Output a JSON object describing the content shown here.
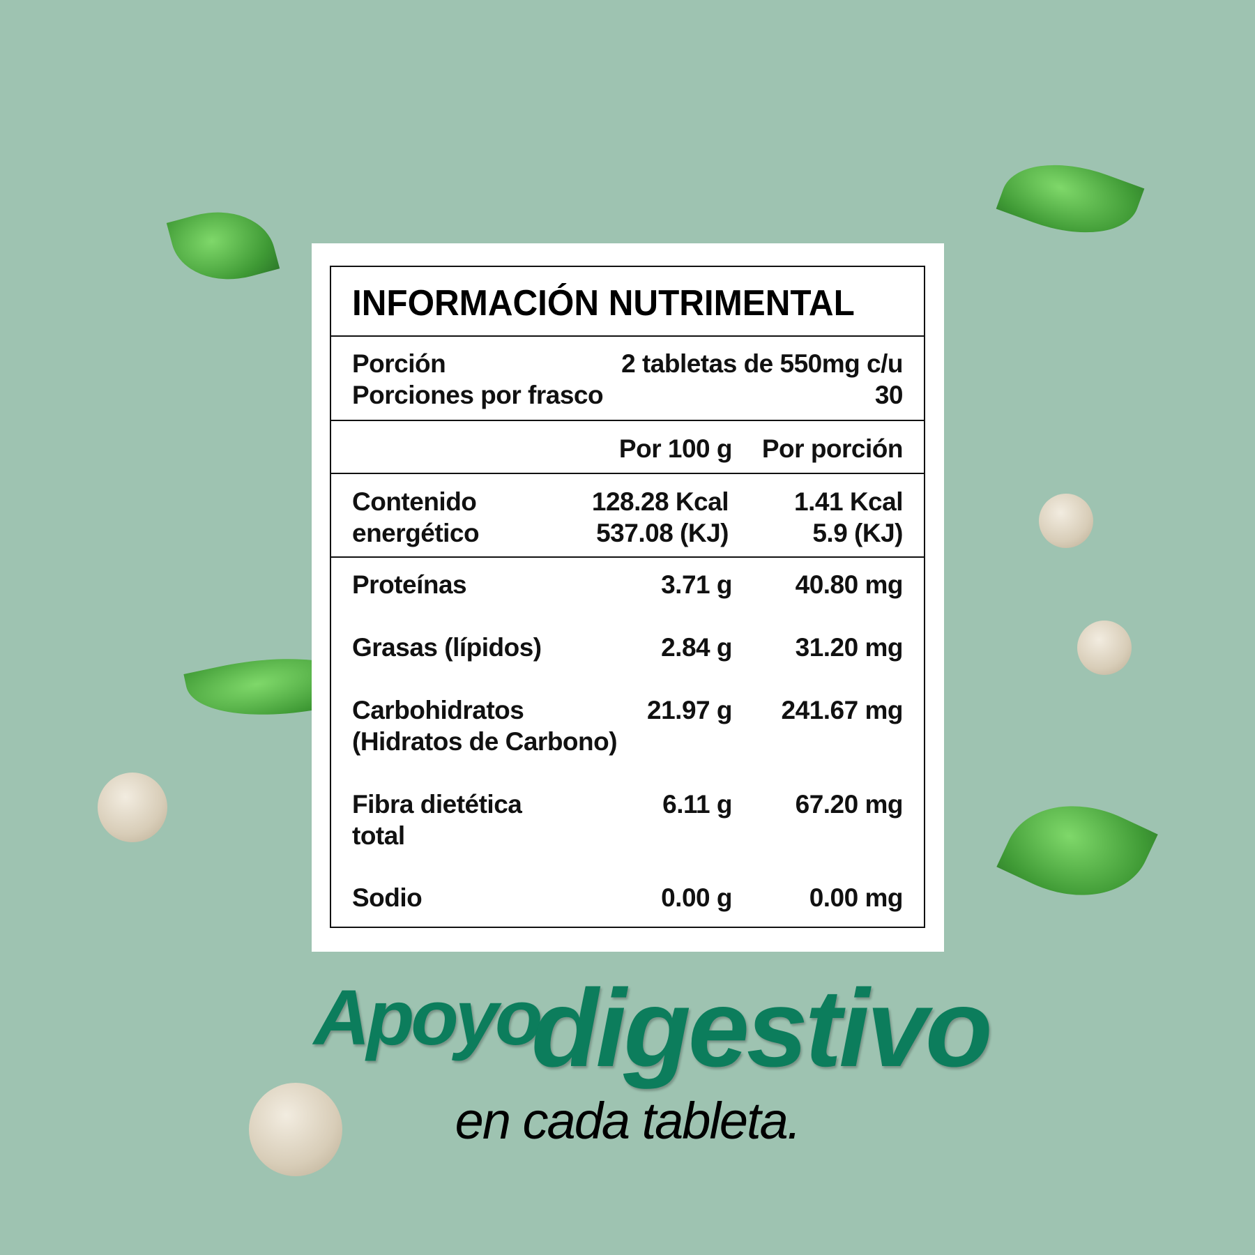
{
  "background_color": "#9ec3b1",
  "accent_color": "#0c7d5c",
  "label": {
    "title": "INFORMACIÓN NUTRIMENTAL",
    "serving_label": "Porción",
    "serving_value": "2 tabletas de 550mg c/u",
    "servings_label": "Porciones por frasco",
    "servings_value": "30",
    "col_per100": "Por 100 g",
    "col_perserving": "Por porción",
    "energy": {
      "label1": "Contenido",
      "label2": "energético",
      "per100_1": "128.28 Kcal",
      "per100_2": "537.08 (KJ)",
      "serv_1": "1.41 Kcal",
      "serv_2": "5.9 (KJ)"
    },
    "rows": [
      {
        "label": "Proteínas",
        "label2": "",
        "per100": "3.71 g",
        "serving": "40.80 mg"
      },
      {
        "label": "Grasas (lípidos)",
        "label2": "",
        "per100": "2.84 g",
        "serving": "31.20 mg"
      },
      {
        "label": "Carbohidratos",
        "label2": "(Hidratos de Carbono)",
        "per100": "21.97 g",
        "serving": "241.67 mg"
      },
      {
        "label": "Fibra dietética",
        "label2": "total",
        "per100": "6.11 g",
        "serving": "67.20 mg"
      },
      {
        "label": "Sodio",
        "label2": "",
        "per100": "0.00 g",
        "serving": "0.00 mg"
      }
    ]
  },
  "tagline": {
    "word1": "Apoyo",
    "word2": "digestivo",
    "subtitle": "en cada tableta."
  },
  "decor": {
    "icons": [
      "mint-leaf-icon",
      "green-leaf-icon",
      "tablet-icon"
    ]
  }
}
